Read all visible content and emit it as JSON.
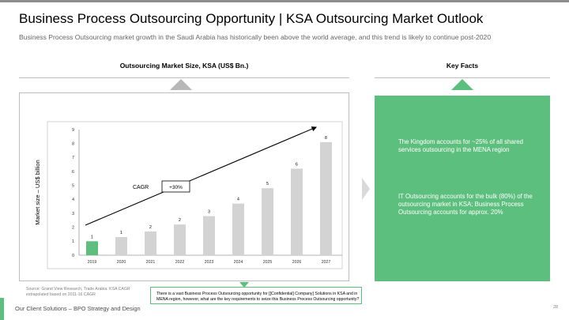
{
  "title": "Business Process Outsourcing Opportunity | KSA Outsourcing Market Outlook",
  "subtitle": "Business Process Outsourcing market growth in the Saudi Arabia has historically been above the world average, and this trend is likely to continue post-2020",
  "left_section_title": "Outsourcing Market Size, KSA (US$ Bn.)",
  "right_section_title": "Key Facts",
  "chart_data": {
    "type": "bar",
    "categories": [
      "2019",
      "2020",
      "2021",
      "2022",
      "2023",
      "2024",
      "2025",
      "2026",
      "2027"
    ],
    "values": [
      1.0,
      1.3,
      1.7,
      2.2,
      2.8,
      3.7,
      4.8,
      6.2,
      8.1
    ],
    "data_labels": [
      "1",
      "1",
      "2",
      "2",
      "3",
      "4",
      "5",
      "6",
      "8"
    ],
    "ylabel": "Market size – US$ billion",
    "ylim": [
      0,
      9
    ],
    "yticks": [
      "0",
      "1",
      "2",
      "3",
      "4",
      "5",
      "6",
      "7",
      "8",
      "9"
    ],
    "grid": false,
    "highlight_color": "#5dbf7d",
    "bar_color": "#d3d3d3",
    "cagr_label": "CAGR",
    "cagr_value": "+30%"
  },
  "key_facts": [
    "The Kingdom accounts for ~25% of all shared services outsourcing in the MENA region",
    "IT Outsourcing accounts for the bulk (80%) of the outsourcing market in KSA; Business Process Outsourcing accounts for approx. 20%"
  ],
  "source_note": "Source: Grand View Research, Trade Arabia. KSA CAGR extrapolated based on 2011-16 CAGR",
  "callout": "There is a vast Business Process Outsourcing opportunity for [[Confidential] Company] Solutions in KSA and in MENA region, however, what are the key requirements to seize this Business Process Outsourcing opportunity?",
  "footer": "Our Client Solutions – BPO Strategy and Design",
  "page_number": "28",
  "colors": {
    "accent": "#5dbf7d",
    "grey": "#b8b8b8"
  }
}
